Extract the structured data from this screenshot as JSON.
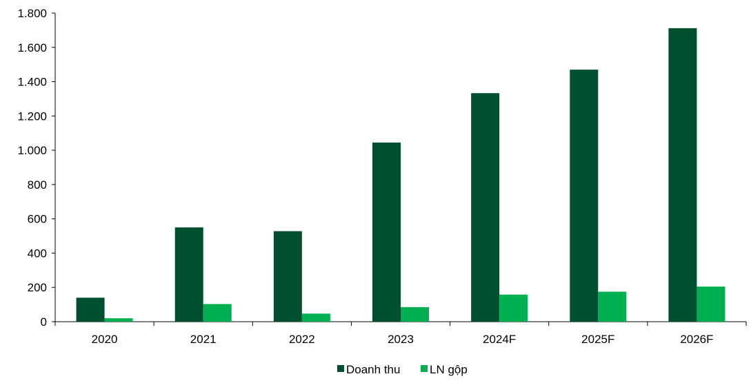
{
  "chart_data": {
    "type": "bar",
    "title": "",
    "xlabel": "",
    "ylabel": "",
    "categories": [
      "2020",
      "2021",
      "2022",
      "2023",
      "2024F",
      "2025F",
      "2026F"
    ],
    "series": [
      {
        "name": "Doanh thu",
        "color": "#005030",
        "values": [
          140,
          550,
          528,
          1045,
          1333,
          1470,
          1712
        ]
      },
      {
        "name": "LN gộp",
        "color": "#00B050",
        "values": [
          20,
          103,
          47,
          85,
          158,
          175,
          205
        ]
      }
    ],
    "ylim": [
      0,
      1800
    ],
    "yticks": [
      0,
      200,
      400,
      600,
      800,
      1000,
      1200,
      1400,
      1600,
      1800
    ],
    "ytick_labels": [
      "0",
      "200",
      "400",
      "600",
      "800",
      "1.000",
      "1.200",
      "1.400",
      "1.600",
      "1.800"
    ],
    "grid": false,
    "legend_position": "bottom"
  }
}
